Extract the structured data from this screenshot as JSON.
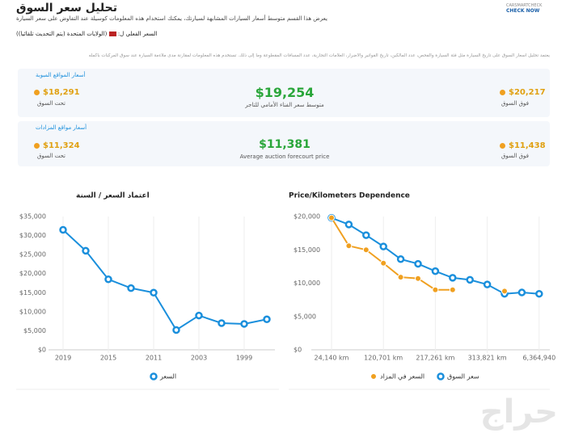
{
  "header": {
    "title": "تحليل سعر السوق",
    "subtitle": "يعرض هذا القسم متوسط أسعار السيارات المشابهة لسيارتك، يمكنك استخدام هذه المعلومات كوسيلة عند التفاوض على سعر السيارة",
    "logo_top": "CARSMARTCHECK",
    "logo": "CHECK NOW"
  },
  "location": {
    "label": "السعر الفعلي ل:",
    "value": "(الولايات المتحدة (يتم التحديث تلقائيا))"
  },
  "description": "يعتمد تحليل أسعار السوق على تاريخ السيارة مثل فئة السيارة والفحص، عدد المالكين، تاريخ الفواتير والأضرار، العلامات التجارية، عدد المسافات المقطوعة وما إلى ذلك. تستخدم هذه المعلومات لمقارنة مدى ملاءمة السيارة عند سوق المركبات بأكمله",
  "cards": [
    {
      "title": "أسعار المواقع المبوبة",
      "low": "$18,291",
      "low_label": "تحت السوق",
      "mid": "$19,254",
      "mid_label": "متوسط سعر الفناء الأمامي للتاجر",
      "high": "$20,217",
      "high_label": "فوق السوق"
    },
    {
      "title": "أسعار مواقع المزادات",
      "low": "$11,324",
      "low_label": "تحت السوق",
      "mid": "$11,381",
      "mid_label": "Average auction forecourt price",
      "high": "$11,438",
      "high_label": "فوق السوق"
    }
  ],
  "chart_data": [
    {
      "type": "line",
      "title": "اعتماد السعر / السنة",
      "categories": [
        "2019",
        null,
        "2015",
        null,
        "2011",
        null,
        "2003",
        null,
        "1999",
        null
      ],
      "series": [
        {
          "name": "السعر",
          "color": "#1a8fdc",
          "values": [
            31500,
            26000,
            18500,
            16200,
            15000,
            5200,
            9000,
            7000,
            6800,
            8000
          ]
        }
      ],
      "ylim": [
        0,
        35000
      ],
      "yticks": [
        {
          "value": 0,
          "label": "$0"
        },
        {
          "value": 5000,
          "label": "$5,000"
        },
        {
          "value": 10000,
          "label": "$10,000"
        },
        {
          "value": 15000,
          "label": "$15,000"
        },
        {
          "value": 20000,
          "label": "$20,000"
        },
        {
          "value": 25000,
          "label": "$25,000"
        },
        {
          "value": 30000,
          "label": "$30,000"
        },
        {
          "value": 35000,
          "label": "$35,000"
        }
      ],
      "grid": true
    },
    {
      "type": "line",
      "title": "Price/Kilometers Dependence",
      "categories": [
        "24,140 km",
        null,
        null,
        "120,701 km",
        null,
        null,
        "217,261 km",
        null,
        null,
        "313,821 km",
        null,
        null,
        "6,364,940"
      ],
      "series": [
        {
          "name": "سعر السوق",
          "color": "#1a8fdc",
          "values": [
            19800,
            18800,
            17200,
            15500,
            13600,
            12900,
            11800,
            10800,
            10500,
            9800,
            8400,
            8600,
            8400
          ]
        },
        {
          "name": "السعر في المزاد",
          "color": "#f0a020",
          "values": [
            19800,
            15600,
            15000,
            13000,
            10900,
            10700,
            9000,
            9000,
            null,
            null,
            8800,
            null,
            null
          ]
        }
      ],
      "ylim": [
        0,
        20000
      ],
      "yticks": [
        {
          "value": 0,
          "label": "$0"
        },
        {
          "value": 5000,
          "label": "$5,000"
        },
        {
          "value": 10000,
          "label": "$10,000"
        },
        {
          "value": 15000,
          "label": "$15,000"
        },
        {
          "value": 20000,
          "label": "$20,000"
        }
      ],
      "grid": true
    }
  ],
  "watermark": "حراج"
}
